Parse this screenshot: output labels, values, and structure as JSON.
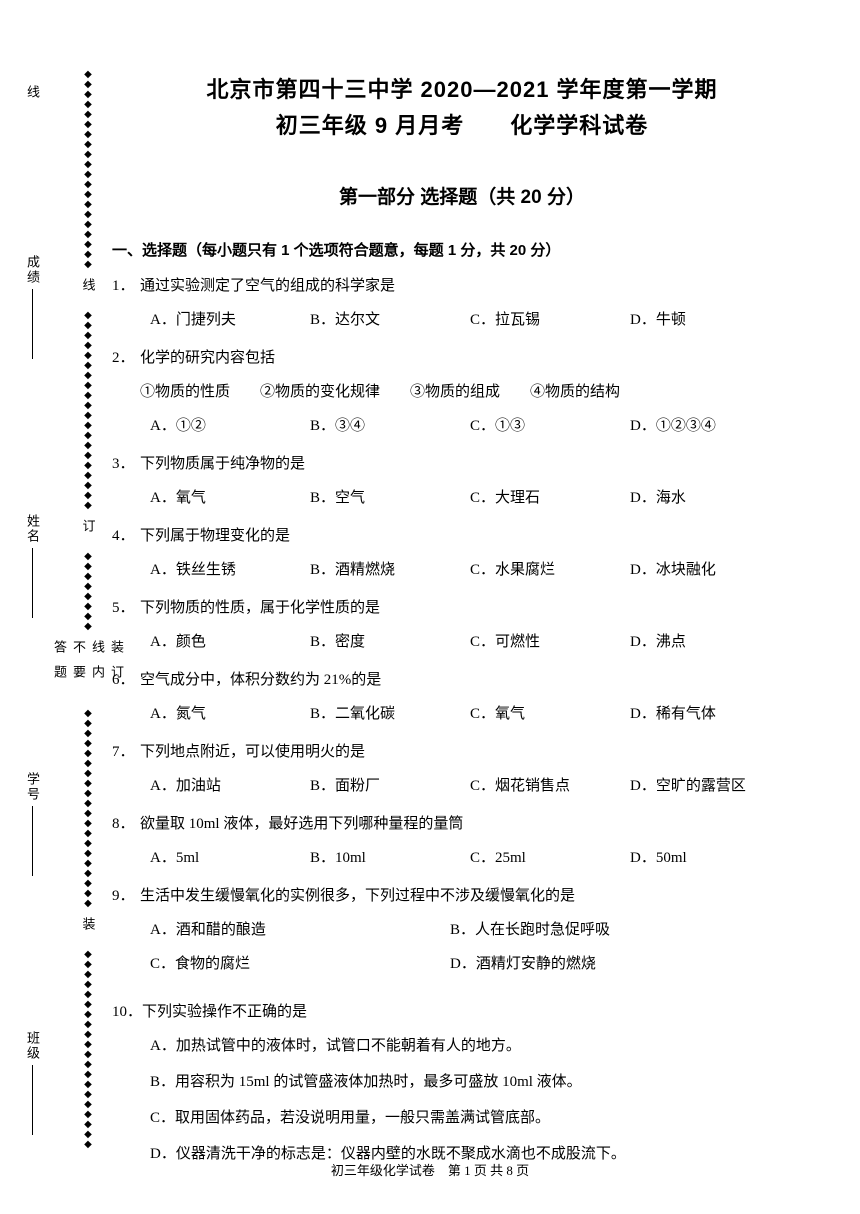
{
  "header": {
    "title_line1": "北京市第四十三中学 2020—2021 学年度第一学期",
    "title_line2": "初三年级 9 月月考　　化学学科试卷"
  },
  "section": {
    "title": "第一部分 选择题（共 20 分）",
    "heading": "一、选择题（每小题只有 1 个选项符合题意，每题 1 分，共 20 分）"
  },
  "side_labels": {
    "line": "线",
    "grade": "成绩",
    "name": "姓名",
    "number": "学号",
    "class": "班级"
  },
  "binding": {
    "text1": "装订线内不要答题",
    "char1": "装",
    "char2": "订",
    "char3": "线"
  },
  "questions": [
    {
      "num": "1．",
      "stem": "通过实验测定了空气的组成的科学家是",
      "layout": "four-col",
      "options": [
        "A．门捷列夫",
        "B．达尔文",
        "C．拉瓦锡",
        "D．牛顿"
      ]
    },
    {
      "num": "2．",
      "stem": "化学的研究内容包括",
      "sub": "①物质的性质　　②物质的变化规律　　③物质的组成　　④物质的结构",
      "layout": "four-col",
      "options": [
        "A．①②",
        "B．③④",
        "C．①③",
        "D．①②③④"
      ]
    },
    {
      "num": "3．",
      "stem": "下列物质属于纯净物的是",
      "layout": "four-col",
      "options": [
        "A．氧气",
        "B．空气",
        "C．大理石",
        "D．海水"
      ]
    },
    {
      "num": "4．",
      "stem": "下列属于物理变化的是",
      "layout": "four-col",
      "options": [
        "A．铁丝生锈",
        "B．酒精燃烧",
        "C．水果腐烂",
        "D．冰块融化"
      ]
    },
    {
      "num": "5．",
      "stem": "下列物质的性质，属于化学性质的是",
      "layout": "four-col",
      "options": [
        "A．颜色",
        "B．密度",
        "C．可燃性",
        "D．沸点"
      ]
    },
    {
      "num": "6．",
      "stem": "空气成分中，体积分数约为 21%的是",
      "layout": "four-col",
      "options": [
        "A．氮气",
        "B．二氧化碳",
        "C．氧气",
        "D．稀有气体"
      ]
    },
    {
      "num": "7．",
      "stem": "下列地点附近，可以使用明火的是",
      "layout": "four-col",
      "options": [
        "A．加油站",
        "B．面粉厂",
        "C．烟花销售点",
        "D．空旷的露营区"
      ]
    },
    {
      "num": "8．",
      "stem": "欲量取 10ml 液体，最好选用下列哪种量程的量筒",
      "layout": "four-col",
      "options": [
        "A．5ml",
        "B．10ml",
        "C．25ml",
        "D．50ml"
      ]
    },
    {
      "num": "9．",
      "stem": "生活中发生缓慢氧化的实例很多，下列过程中不涉及缓慢氧化的是",
      "layout": "two-col",
      "options": [
        "A．酒和醋的酿造",
        "B．人在长跑时急促呼吸",
        "C．食物的腐烂",
        "D．酒精灯安静的燃烧"
      ]
    },
    {
      "num": "10．",
      "stem": "下列实验操作不正确的是",
      "layout": "one-col",
      "options": [
        "A．加热试管中的液体时，试管口不能朝着有人的地方。",
        "B．用容积为 15ml 的试管盛液体加热时，最多可盛放 10ml 液体。",
        "C．取用固体药品，若没说明用量，一般只需盖满试管底部。",
        "D．仪器清洗干净的标志是：仪器内壁的水既不聚成水滴也不成股流下。"
      ]
    }
  ],
  "footer": {
    "text": "初三年级化学试卷　第 1 页 共 8 页"
  }
}
